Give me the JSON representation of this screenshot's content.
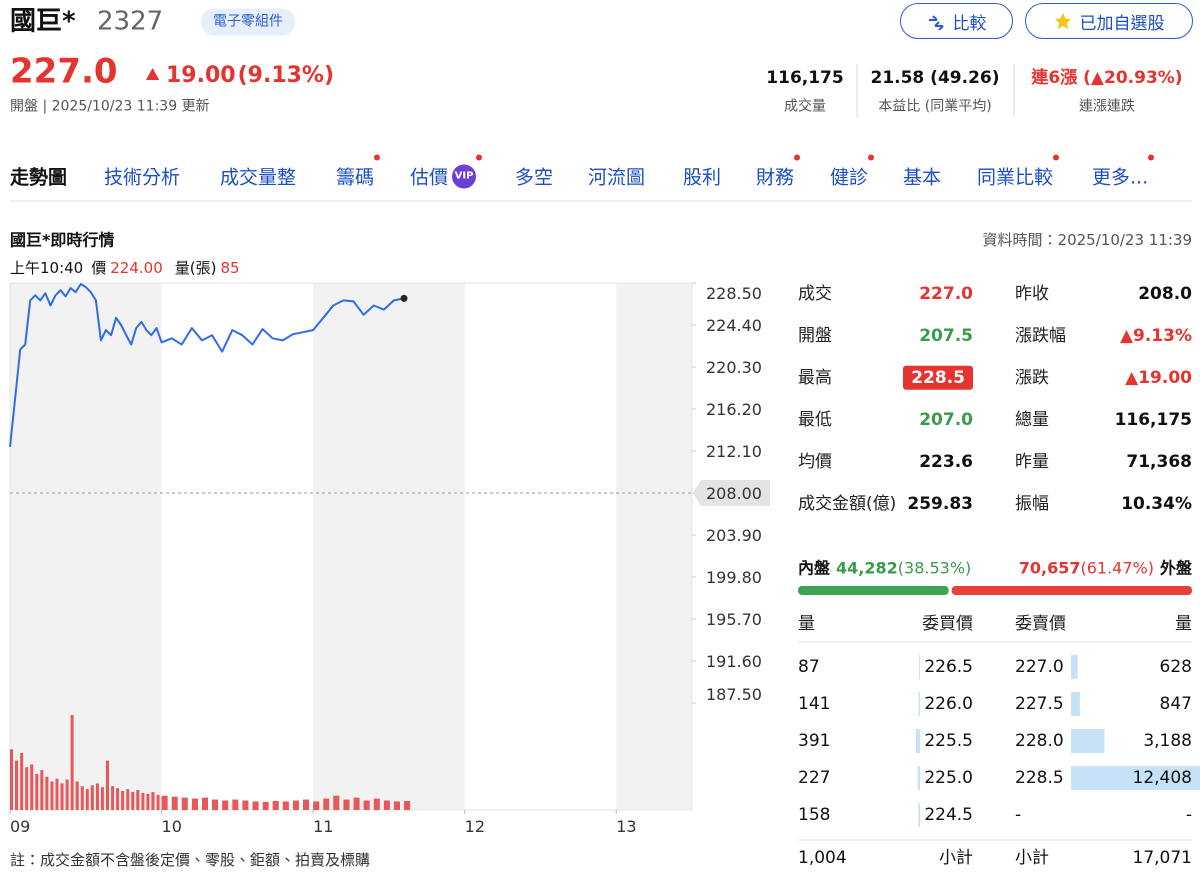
{
  "header": {
    "name": "國巨*",
    "code": "2327",
    "industry": "電子零組件",
    "buttons": [
      "比較",
      "已加自選股"
    ],
    "price": "227.0",
    "change": "19.00",
    "change_pct": "(9.13%)",
    "status": "開盤 | 2025/10/23 11:39 更新",
    "stats": [
      {
        "value": "116,175",
        "label": "成交量"
      },
      {
        "value": "21.58 (49.26)",
        "label": "本益比 (同業平均)"
      },
      {
        "value": "連6漲 (▲20.93%)",
        "label": "連漲連跌",
        "tone": "up"
      }
    ]
  },
  "tabs": [
    {
      "label": "走勢圖",
      "active": true
    },
    {
      "label": "技術分析"
    },
    {
      "label": "成交量整"
    },
    {
      "label": "籌碼",
      "dot": true
    },
    {
      "label": "估價",
      "badge": "VIP",
      "dot": true
    },
    {
      "label": "多空"
    },
    {
      "label": "河流圖"
    },
    {
      "label": "股利"
    },
    {
      "label": "財務",
      "dot": true
    },
    {
      "label": "健診",
      "dot": true
    },
    {
      "label": "基本"
    },
    {
      "label": "同業比較",
      "dot": true
    },
    {
      "label": "更多...",
      "dot": true
    }
  ],
  "panel": {
    "title": "國巨*即時行情",
    "data_time": "資料時間：2025/10/23 11:39",
    "hover": {
      "time": "上午10:40",
      "price_label": "價",
      "price": "224.00",
      "volume_label": "量(張)",
      "volume": "85"
    },
    "note": "註：成交金額不含盤後定價、零股、鉅額、拍賣及標購"
  },
  "chart": {
    "type": "line",
    "x": [
      9.0,
      9.033,
      9.067,
      9.1,
      9.133,
      9.167,
      9.2,
      9.233,
      9.267,
      9.3,
      9.333,
      9.367,
      9.4,
      9.433,
      9.467,
      9.5,
      9.533,
      9.567,
      9.6,
      9.633,
      9.667,
      9.7,
      9.733,
      9.767,
      9.8,
      9.833,
      9.867,
      9.9,
      9.933,
      9.967,
      10.0,
      10.067,
      10.133,
      10.2,
      10.267,
      10.333,
      10.4,
      10.467,
      10.533,
      10.6,
      10.667,
      10.733,
      10.8,
      10.867,
      10.933,
      11.0,
      11.067,
      11.133,
      11.2,
      11.267,
      11.333,
      11.4,
      11.467,
      11.533,
      11.6
    ],
    "price": [
      212.5,
      217.1,
      222.0,
      222.5,
      226.8,
      227.3,
      226.8,
      227.5,
      226.3,
      227.3,
      227.8,
      227.2,
      228.0,
      227.6,
      228.4,
      228.1,
      227.6,
      226.8,
      222.9,
      223.9,
      223.4,
      225.1,
      224.4,
      223.4,
      222.5,
      224.1,
      224.7,
      223.9,
      223.4,
      224.1,
      222.7,
      223.1,
      222.5,
      224.1,
      222.9,
      223.4,
      221.8,
      223.9,
      223.4,
      222.5,
      224.0,
      223.1,
      222.9,
      223.5,
      223.7,
      223.9,
      225.1,
      226.3,
      226.8,
      226.7,
      225.4,
      226.3,
      225.9,
      226.8,
      227.0
    ],
    "volume": [
      640,
      520,
      600,
      450,
      480,
      380,
      420,
      350,
      300,
      330,
      280,
      320,
      1000,
      300,
      250,
      220,
      260,
      280,
      240,
      520,
      250,
      230,
      200,
      220,
      190,
      210,
      180,
      170,
      190,
      160,
      150,
      140,
      130,
      120,
      130,
      110,
      100,
      110,
      100,
      90,
      85,
      95,
      90,
      100,
      110,
      90,
      120,
      150,
      110,
      130,
      100,
      120,
      100,
      90,
      95
    ],
    "color": "#2f6de8",
    "volume_color": "#e8585a",
    "xlim": [
      9,
      13.5
    ],
    "xticks": [
      {
        "value": 9,
        "label": "09"
      },
      10,
      11,
      12,
      13
    ],
    "ylim": [
      187.5,
      228.5
    ],
    "yticks": [
      {
        "value": 228.5,
        "label": "228.50"
      },
      {
        "value": 224.4,
        "label": "224.40"
      },
      {
        "value": 220.3,
        "label": "220.30"
      },
      {
        "value": 216.2,
        "label": "216.20"
      },
      {
        "value": 212.1,
        "label": "212.10"
      },
      {
        "value": 208,
        "label": "208.00"
      },
      {
        "value": 203.9,
        "label": "203.90"
      },
      {
        "value": 199.8,
        "label": "199.80"
      },
      {
        "value": 195.7,
        "label": "195.70"
      },
      {
        "value": 191.6,
        "label": "191.60"
      },
      {
        "value": 187.5,
        "label": "187.50"
      }
    ],
    "reference": 208
  },
  "quote": {
    "rows": [
      [
        {
          "label": "成交",
          "value": "227.0",
          "tone": "up"
        },
        {
          "label": "昨收",
          "value": "208.0"
        }
      ],
      [
        {
          "label": "開盤",
          "value": "207.5",
          "tone": "down"
        },
        {
          "label": "漲跌幅",
          "value": "▲9.13%",
          "tone": "up"
        }
      ],
      [
        {
          "label": "最高",
          "value": "228.5",
          "tone": "box"
        },
        {
          "label": "漲跌",
          "value": "▲19.00",
          "tone": "up"
        }
      ],
      [
        {
          "label": "最低",
          "value": "207.0",
          "tone": "down"
        },
        {
          "label": "總量",
          "value": "116,175"
        }
      ],
      [
        {
          "label": "均價",
          "value": "223.6"
        },
        {
          "label": "昨量",
          "value": "71,368"
        }
      ],
      [
        {
          "label": "成交金額(億)",
          "value": "259.83"
        },
        {
          "label": "振幅",
          "value": "10.34%"
        }
      ]
    ]
  },
  "order_flow": {
    "inner_label": "內盤",
    "inner_volume": "44,282",
    "inner_pct": {
      "value": 38.53,
      "label": "(38.53%)"
    },
    "outer_volume": "70,657",
    "outer_pct": {
      "value": 61.47,
      "label": "(61.47%)"
    },
    "outer_label": "外盤"
  },
  "order_book": {
    "headers": [
      "量",
      "委買價",
      "委賣價",
      "量"
    ],
    "rows": [
      {
        "bid_qty": 87,
        "bid": "226.5",
        "ask": "227.0",
        "ask_qty": 628
      },
      {
        "bid_qty": 141,
        "bid": "226.0",
        "ask": "227.5",
        "ask_qty": 847
      },
      {
        "bid_qty": 391,
        "bid": "225.5",
        "ask": "228.0",
        "ask_qty": {
          "value": 3188,
          "label": "3,188"
        }
      },
      {
        "bid_qty": 227,
        "bid": "225.0",
        "ask": "228.5",
        "ask_qty": {
          "value": 12408,
          "label": "12,408"
        }
      },
      {
        "bid_qty": 158,
        "bid": "224.5",
        "ask": "-",
        "ask_qty": "-"
      }
    ],
    "totals": [
      "1,004",
      "小計",
      "小計",
      "17,071"
    ]
  }
}
